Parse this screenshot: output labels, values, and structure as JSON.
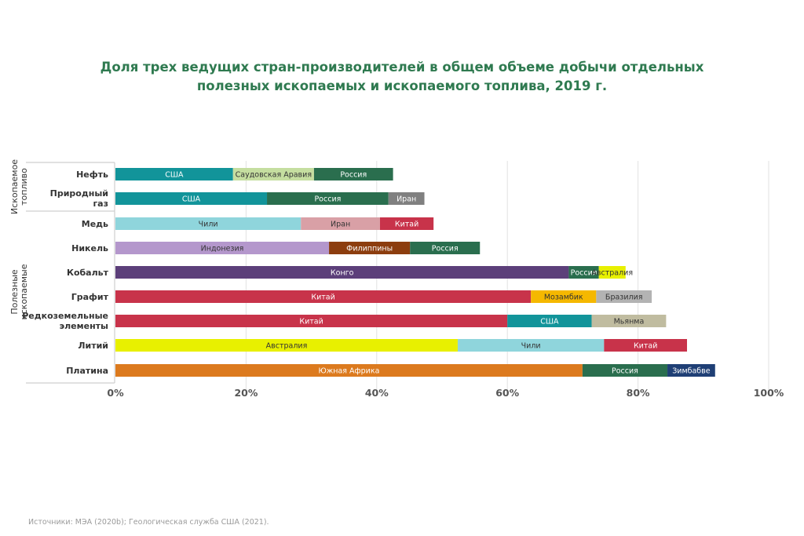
{
  "title_lines": [
    "Доля трех ведущих стран-производителей в общем объеме добычи отдельных",
    "полезных ископаемых и ископаемого топлива, 2019 г."
  ],
  "source": "Источники: МЭА (2020b); Геологическая служба США (2021).",
  "chart_data": {
    "type": "bar",
    "orientation": "horizontal",
    "stacked": true,
    "title": "Доля трех ведущих стран-производителей в общем объеме добычи отдельных полезных ископаемых и ископаемого топлива, 2019 г.",
    "xlim": [
      0,
      100
    ],
    "x_ticks": [
      "0%",
      "20%",
      "40%",
      "60%",
      "80%",
      "100%"
    ],
    "grid": true,
    "groups": [
      {
        "label": "Ископаемое топливо",
        "categories": [
          "Нефть",
          "Природный газ"
        ]
      },
      {
        "label": "Полезные ископаемые",
        "categories": [
          "Медь",
          "Никель",
          "Кобальт",
          "Графит",
          "Редкоземельные элементы",
          "Литий",
          "Платина"
        ]
      }
    ],
    "rows": [
      {
        "category": "Нефть",
        "segments": [
          {
            "country": "США",
            "value": 18,
            "color": "#12949a"
          },
          {
            "country": "Саудовская Аравия",
            "value": 12.4,
            "color": "#c5dea0"
          },
          {
            "country": "Россия",
            "value": 12.1,
            "color": "#2a6e4e"
          }
        ]
      },
      {
        "category": "Природный газ",
        "segments": [
          {
            "country": "США",
            "value": 23.2,
            "color": "#12949a"
          },
          {
            "country": "Россия",
            "value": 18.6,
            "color": "#2a6e4e"
          },
          {
            "country": "Иран",
            "value": 5.5,
            "color": "#808080"
          }
        ]
      },
      {
        "category": "Медь",
        "segments": [
          {
            "country": "Чили",
            "value": 28.4,
            "color": "#8fd5dc"
          },
          {
            "country": "Иран",
            "value": 12.1,
            "color": "#d9a0a6"
          },
          {
            "country": "Китай",
            "value": 8.2,
            "color": "#c8334a"
          }
        ]
      },
      {
        "category": "Никель",
        "segments": [
          {
            "country": "Индонезия",
            "value": 32.7,
            "color": "#b497cc"
          },
          {
            "country": "Филиппины",
            "value": 12.4,
            "color": "#8c3d0e"
          },
          {
            "country": "Россия",
            "value": 10.7,
            "color": "#2a6e4e"
          }
        ]
      },
      {
        "category": "Кобальт",
        "segments": [
          {
            "country": "Конго",
            "value": 69.4,
            "color": "#5c3f7a"
          },
          {
            "country": "Россия",
            "value": 4.6,
            "color": "#2a6e4e"
          },
          {
            "country": "Австралия",
            "value": 4.1,
            "color": "#e8f000"
          }
        ]
      },
      {
        "category": "Графит",
        "segments": [
          {
            "country": "Китай",
            "value": 63.6,
            "color": "#c8334a"
          },
          {
            "country": "Мозамбик",
            "value": 10,
            "color": "#f5b800"
          },
          {
            "country": "Бразилия",
            "value": 8.5,
            "color": "#b3b3b3"
          }
        ]
      },
      {
        "category": "Редкоземельные элементы",
        "segments": [
          {
            "country": "Китай",
            "value": 60,
            "color": "#c8334a"
          },
          {
            "country": "США",
            "value": 12.9,
            "color": "#12949a"
          },
          {
            "country": "Мьянма",
            "value": 11.4,
            "color": "#c0bca0"
          }
        ]
      },
      {
        "category": "Литий",
        "segments": [
          {
            "country": "Австралия",
            "value": 52.4,
            "color": "#e8f000"
          },
          {
            "country": "Чили",
            "value": 22.4,
            "color": "#8fd5dc"
          },
          {
            "country": "Китай",
            "value": 12.7,
            "color": "#c8334a"
          }
        ]
      },
      {
        "category": "Платина",
        "segments": [
          {
            "country": "Южная Африка",
            "value": 71.5,
            "color": "#dc7a1e"
          },
          {
            "country": "Россия",
            "value": 13,
            "color": "#2a6e4e"
          },
          {
            "country": "Зимбабве",
            "value": 7.3,
            "color": "#1f3f75"
          }
        ]
      }
    ]
  }
}
